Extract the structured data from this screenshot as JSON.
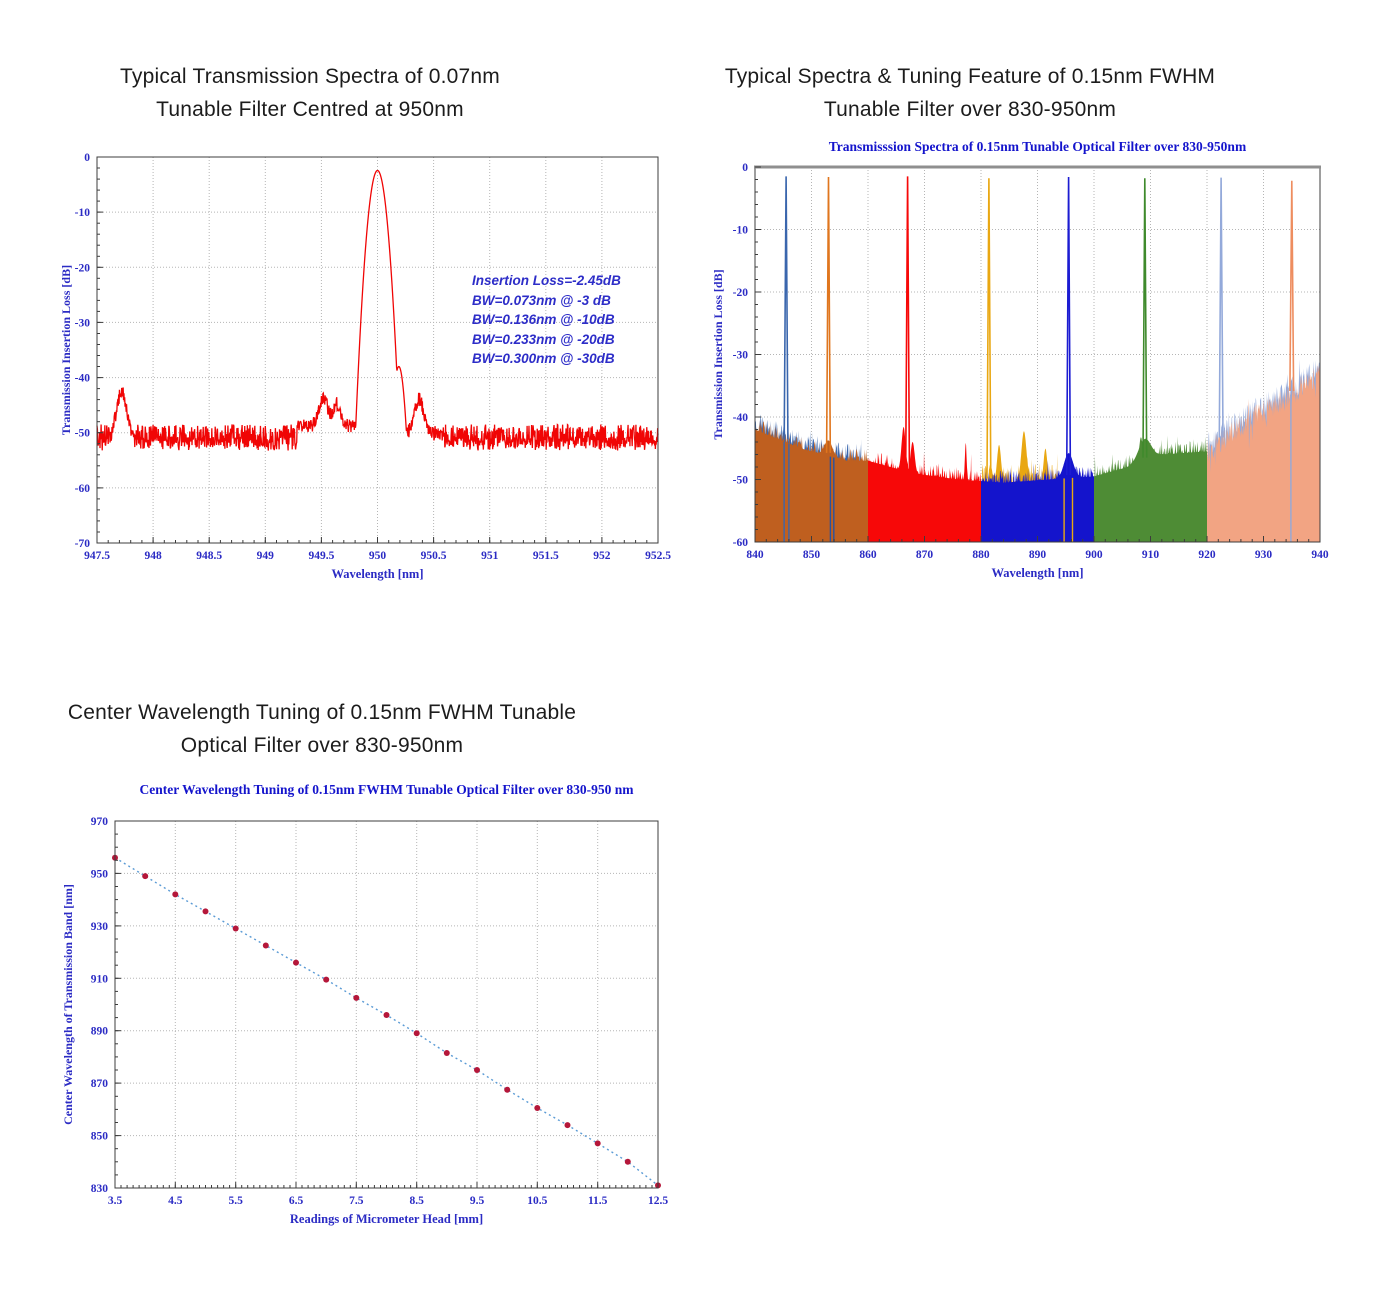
{
  "page": {
    "background": "#ffffff",
    "heading_color": "#1c1c1c",
    "tick_label_color": "#2b2bc4",
    "inner_title_color": "#1414cc",
    "grid_color": "#b5b5b5"
  },
  "chart_data": [
    {
      "id": "spectra-950",
      "type": "line",
      "heading_line1": "Typical Transmission Spectra of 0.07nm",
      "heading_line2": "Tunable Filter Centred at 950nm",
      "xlabel": "Wavelength [nm]",
      "ylabel": "Transmission Insertion Loss [dB]",
      "xlim": [
        947.5,
        952.5
      ],
      "ylim": [
        -70,
        0
      ],
      "xticks": [
        "947.5",
        "948",
        "948.5",
        "949",
        "949.5",
        "950",
        "950.5",
        "951",
        "951.5",
        "952",
        "952.5"
      ],
      "yticks": [
        "0",
        "-10",
        "-20",
        "-30",
        "-40",
        "-50",
        "-60",
        "-70"
      ],
      "xtick_minor": 0.1,
      "ytick_minor": 2,
      "grid": true,
      "line_color": "#f00505",
      "annotation": [
        "Insertion Loss=-2.45dB",
        "BW=0.073nm @ -3 dB",
        "BW=0.136nm @ -10dB",
        "BW=0.233nm @ -20dB",
        "BW=0.300nm @ -30dB"
      ],
      "peak": {
        "center_nm": 950.0,
        "peak_db": -2.45,
        "noise_floor_db": -52,
        "side_lobe_db": -38,
        "left_bump_nm": 947.72,
        "left_bump_db": -43
      }
    },
    {
      "id": "spectra-830-950",
      "type": "area",
      "heading_line1": "Typical Spectra & Tuning Feature of 0.15nm FWHM",
      "heading_line2": "Tunable Filter over 830-950nm",
      "title": "Transmisssion Spectra of 0.15nm Tunable Optical Filter over 830-950nm",
      "xlabel": "Wavelength [nm]",
      "ylabel": "Transmission Insertion Loss [dB]",
      "xlim": [
        840,
        940
      ],
      "ylim": [
        -60,
        0
      ],
      "xticks": [
        "840",
        "850",
        "860",
        "870",
        "880",
        "890",
        "900",
        "910",
        "920",
        "930",
        "940"
      ],
      "yticks": [
        "0",
        "-10",
        "-20",
        "-30",
        "-40",
        "-50",
        "-60"
      ],
      "xtick_minor": 2,
      "ytick_minor": 2,
      "grid": true,
      "baseline": [
        [
          840,
          -42
        ],
        [
          848,
          -45
        ],
        [
          856,
          -47
        ],
        [
          860,
          -47
        ],
        [
          868,
          -49
        ],
        [
          876,
          -50
        ],
        [
          884,
          -50.5
        ],
        [
          892,
          -50
        ],
        [
          900,
          -49.5
        ],
        [
          906,
          -48
        ],
        [
          912,
          -46
        ],
        [
          920,
          -45.5
        ],
        [
          928,
          -40
        ],
        [
          934,
          -37
        ],
        [
          940,
          -33
        ]
      ],
      "segments": [
        {
          "x0": 840,
          "x1": 860,
          "fill": "#bf5f1f",
          "bumps": [
            [
              853,
              2.5,
              0.7
            ]
          ]
        },
        {
          "x0": 860,
          "x1": 880,
          "fill": "#f70808",
          "bumps": [
            [
              866.3,
              7,
              0.35
            ],
            [
              867.9,
              5,
              0.35
            ],
            [
              877.3,
              6,
              0.15
            ]
          ]
        },
        {
          "x0": 880,
          "x1": 900,
          "fill": "#1414cc",
          "bumps": [
            [
              895.5,
              4,
              0.8
            ]
          ]
        },
        {
          "x0": 900,
          "x1": 920,
          "fill": "#4e8c35",
          "bumps": [
            [
              909,
              3.5,
              1.1
            ],
            [
              908.3,
              4,
              0.3
            ]
          ]
        },
        {
          "x0": 920,
          "x1": 940,
          "fill": "#f2a483",
          "bumps": []
        }
      ],
      "overlays": [
        {
          "x0": 840,
          "x1": 858.8,
          "color": "#3a66ad",
          "bumps": []
        },
        {
          "x0": 880.2,
          "x1": 893.5,
          "color": "#e9a712",
          "bumps": [
            [
              883.2,
              6,
              0.35
            ],
            [
              887.6,
              8,
              0.45
            ],
            [
              891.4,
              5,
              0.3
            ]
          ]
        },
        {
          "x0": 920.2,
          "x1": 939.9,
          "color": "#93a9da",
          "bumps": []
        }
      ],
      "peaks": [
        {
          "x": 845.5,
          "peak_db": -1.5,
          "color": "#3a66ad"
        },
        {
          "x": 853.0,
          "peak_db": -1.6,
          "color": "#e0761e"
        },
        {
          "x": 867.0,
          "peak_db": -1.5,
          "color": "#f70808"
        },
        {
          "x": 881.4,
          "peak_db": -1.8,
          "color": "#e9a712"
        },
        {
          "x": 895.5,
          "peak_db": -1.6,
          "color": "#1c1cd2"
        },
        {
          "x": 909.0,
          "peak_db": -1.8,
          "color": "#3f8a2c"
        },
        {
          "x": 922.5,
          "peak_db": -1.7,
          "color": "#93a9da"
        },
        {
          "x": 935.0,
          "peak_db": -2.2,
          "color": "#ee8d5f"
        }
      ],
      "vlines": [
        {
          "x": 845.15,
          "color": "#3a66ad"
        },
        {
          "x": 846.0,
          "color": "#3a66ad"
        },
        {
          "x": 853.35,
          "color": "#2a52a0"
        },
        {
          "x": 853.95,
          "color": "#2a52a0"
        },
        {
          "x": 894.7,
          "color": "#e9a712"
        },
        {
          "x": 896.2,
          "color": "#e9a712"
        },
        {
          "x": 934.85,
          "color": "#93a9da"
        }
      ]
    },
    {
      "id": "tuning-curve",
      "type": "scatter",
      "heading_line1": "Center Wavelength Tuning of 0.15nm FWHM Tunable",
      "heading_line2": "Optical Filter over 830-950nm",
      "title": "Center Wavelength Tuning of 0.15nm FWHM Tunable Optical Filter over 830-950 nm",
      "xlabel": "Readings of Micrometer Head [mm]",
      "ylabel": "Center Wavelength of Transmission Band [nm]",
      "xlim": [
        3.5,
        12.5
      ],
      "ylim": [
        830,
        970
      ],
      "xticks": [
        "3.5",
        "4.5",
        "5.5",
        "6.5",
        "7.5",
        "8.5",
        "9.5",
        "10.5",
        "11.5",
        "12.5"
      ],
      "yticks": [
        "830",
        "850",
        "870",
        "890",
        "910",
        "930",
        "950",
        "970"
      ],
      "xtick_minor": 0.1,
      "ytick_minor": 5,
      "grid": true,
      "x": [
        3.5,
        4,
        4.5,
        5,
        5.5,
        6,
        6.5,
        7,
        7.5,
        8,
        8.5,
        9,
        9.5,
        10,
        10.5,
        11,
        11.5,
        12,
        12.5
      ],
      "y": [
        956,
        949,
        942,
        935.5,
        929,
        922.5,
        916,
        909.5,
        902.5,
        896,
        889,
        881.5,
        875,
        867.5,
        860.5,
        854,
        847,
        840,
        831
      ],
      "marker_color": "#b5173a",
      "trend_color": "#5b9bd5",
      "trend_style": "dotted"
    }
  ]
}
